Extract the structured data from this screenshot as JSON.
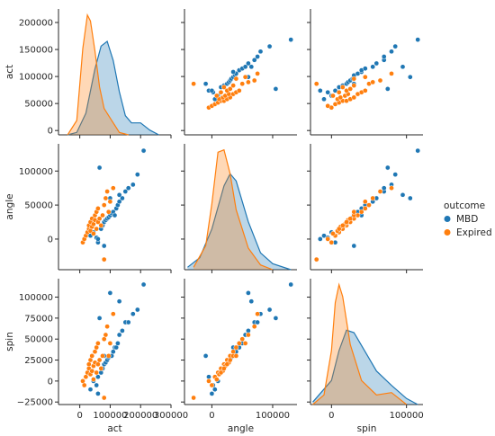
{
  "chart_data": {
    "type": "scatter",
    "variables": [
      "act",
      "angle",
      "spin"
    ],
    "hue": "outcome",
    "legend": {
      "title": "outcome",
      "placement": "right",
      "entries": [
        "MBD",
        "Expired"
      ]
    },
    "colors": {
      "MBD": "#1f77b4",
      "Expired": "#ff7f0e"
    },
    "axes": {
      "act": {
        "label": "act",
        "lim": [
          -70000,
          300000
        ],
        "ticks": [
          0,
          50000,
          100000,
          150000,
          200000
        ],
        "tick_labels_x": [
          "100000",
          "200000",
          "300000"
        ],
        "tick_values_x": [
          100000,
          200000,
          300000
        ]
      },
      "angle": {
        "label": "angle",
        "lim": [
          -45000,
          140000
        ],
        "ticks": [
          0,
          50000,
          100000
        ],
        "tick_labels_y": [
          "0",
          "50000",
          "100000"
        ],
        "tick_values_x": [
          0,
          100000
        ],
        "tick_labels_x": [
          "0",
          "100000"
        ]
      },
      "spin": {
        "label": "spin",
        "lim": [
          -28000,
          122000
        ],
        "ticks": [
          -25000,
          0,
          25000,
          50000,
          75000,
          100000
        ],
        "tick_labels_y": [
          "−25000",
          "0",
          "25000",
          "50000",
          "75000",
          "100000"
        ],
        "tick_values_x": [
          0,
          100000
        ],
        "tick_labels_x": [
          "0",
          "100000"
        ]
      }
    },
    "act_tick_labels_y": [
      "0",
      "50000",
      "100000",
      "150000",
      "200000"
    ],
    "kde_act_ylim": [
      -8000,
      225000
    ],
    "diagonal": "kde",
    "series": [
      {
        "name": "MBD",
        "act": [
          35000,
          45000,
          55000,
          60000,
          70000,
          75000,
          80000,
          85000,
          90000,
          95000,
          100000,
          105000,
          110000,
          115000,
          120000,
          125000,
          130000,
          140000,
          150000,
          160000,
          175000,
          190000,
          210000,
          65000,
          100000,
          130000,
          60000,
          80000
        ],
        "angle": [
          5000,
          10000,
          2000,
          -5000,
          15000,
          20000,
          25000,
          28000,
          30000,
          32000,
          35000,
          38000,
          40000,
          35000,
          45000,
          50000,
          55000,
          60000,
          70000,
          75000,
          80000,
          95000,
          130000,
          105000,
          60000,
          65000,
          0,
          -10000
        ],
        "spin": [
          -10000,
          0,
          -5000,
          5000,
          10000,
          15000,
          20000,
          22000,
          25000,
          28000,
          30000,
          30000,
          35000,
          40000,
          40000,
          45000,
          55000,
          60000,
          70000,
          70000,
          80000,
          85000,
          115000,
          75000,
          105000,
          95000,
          -15000,
          30000
        ]
      },
      {
        "name": "Expired",
        "act": [
          10000,
          15000,
          20000,
          25000,
          30000,
          30000,
          35000,
          35000,
          40000,
          40000,
          45000,
          45000,
          50000,
          50000,
          55000,
          55000,
          60000,
          60000,
          65000,
          70000,
          75000,
          80000,
          85000,
          90000,
          95000,
          100000,
          110000,
          80000
        ],
        "angle": [
          -5000,
          0,
          5000,
          10000,
          15000,
          20000,
          12000,
          25000,
          18000,
          30000,
          22000,
          8000,
          28000,
          35000,
          15000,
          40000,
          25000,
          45000,
          30000,
          20000,
          35000,
          50000,
          60000,
          70000,
          40000,
          55000,
          75000,
          -30000
        ],
        "spin": [
          0,
          -5000,
          5000,
          10000,
          15000,
          20000,
          8000,
          25000,
          12000,
          30000,
          18000,
          2000,
          22000,
          35000,
          10000,
          40000,
          20000,
          45000,
          25000,
          15000,
          30000,
          50000,
          55000,
          65000,
          30000,
          45000,
          80000,
          -20000
        ]
      }
    ],
    "kde": {
      "MBD": {
        "act": {
          "x": [
            -40000,
            -10000,
            20000,
            50000,
            70000,
            90000,
            110000,
            130000,
            150000,
            170000,
            200000,
            230000,
            260000
          ],
          "density": [
            0,
            0.02,
            0.18,
            0.55,
            0.74,
            0.78,
            0.62,
            0.36,
            0.16,
            0.1,
            0.1,
            0.04,
            0
          ]
        },
        "angle": {
          "x": [
            -40000,
            -20000,
            0,
            20000,
            30000,
            40000,
            60000,
            80000,
            100000,
            130000
          ],
          "density": [
            0.02,
            0.1,
            0.34,
            0.7,
            0.8,
            0.74,
            0.4,
            0.14,
            0.05,
            0
          ]
        },
        "spin": {
          "x": [
            -25000,
            0,
            10000,
            20000,
            30000,
            45000,
            60000,
            80000,
            100000,
            115000
          ],
          "density": [
            0.02,
            0.2,
            0.45,
            0.62,
            0.6,
            0.44,
            0.28,
            0.16,
            0.05,
            0
          ]
        }
      },
      "Expired": {
        "act": {
          "x": [
            -40000,
            -10000,
            10000,
            25000,
            35000,
            50000,
            65000,
            80000,
            100000,
            130000,
            160000
          ],
          "density": [
            0,
            0.12,
            0.72,
            1.0,
            0.95,
            0.7,
            0.4,
            0.22,
            0.14,
            0.02,
            0
          ]
        },
        "angle": {
          "x": [
            -30000,
            -10000,
            0,
            10000,
            20000,
            30000,
            40000,
            60000,
            80000,
            100000
          ],
          "density": [
            0.02,
            0.2,
            0.55,
            0.98,
            1.0,
            0.8,
            0.5,
            0.18,
            0.04,
            0
          ]
        },
        "spin": {
          "x": [
            -25000,
            -10000,
            0,
            5000,
            10000,
            15000,
            25000,
            40000,
            60000,
            80000,
            100000
          ],
          "density": [
            0,
            0.08,
            0.45,
            0.85,
            1.0,
            0.9,
            0.5,
            0.2,
            0.08,
            0.1,
            0
          ]
        }
      }
    }
  }
}
